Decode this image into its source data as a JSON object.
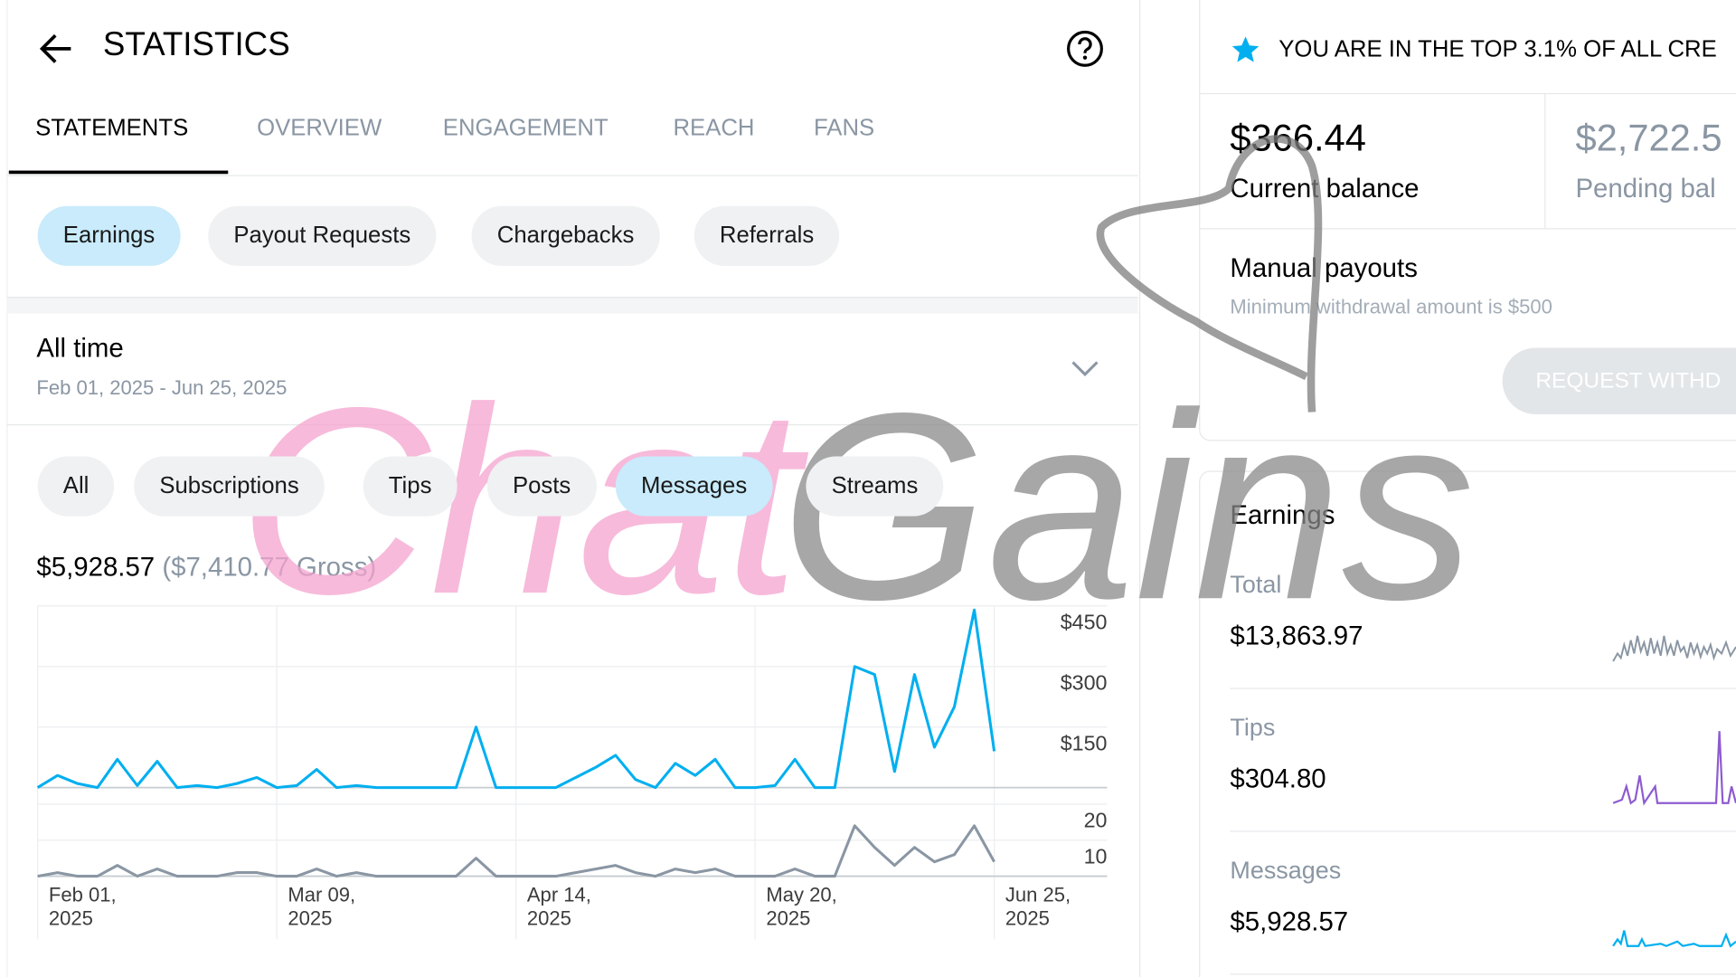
{
  "header": {
    "title": "STATISTICS"
  },
  "tabs": [
    "STATEMENTS",
    "OVERVIEW",
    "ENGAGEMENT",
    "REACH",
    "FANS"
  ],
  "subtabs": [
    "Earnings",
    "Payout Requests",
    "Chargebacks",
    "Referrals"
  ],
  "period": {
    "label": "All time",
    "range": "Feb 01, 2025 - Jun 25, 2025"
  },
  "filters": [
    "All",
    "Subscriptions",
    "Tips",
    "Posts",
    "Messages",
    "Streams"
  ],
  "summary": {
    "net": "$5,928.57",
    "gross": "($7,410.77 Gross)"
  },
  "chart_data": [
    {
      "type": "line",
      "color": "#00aff0",
      "ylim": [
        0,
        450
      ],
      "yticks": [
        {
          "value": 150,
          "label": "$150"
        },
        {
          "value": 300,
          "label": "$300"
        },
        {
          "value": 450,
          "label": "$450"
        }
      ],
      "values": [
        0,
        30,
        10,
        0,
        70,
        5,
        65,
        0,
        5,
        0,
        10,
        25,
        0,
        5,
        45,
        0,
        5,
        0,
        0,
        0,
        0,
        0,
        150,
        0,
        0,
        0,
        0,
        25,
        50,
        80,
        20,
        0,
        60,
        30,
        70,
        0,
        0,
        5,
        70,
        0,
        0,
        300,
        280,
        40,
        280,
        100,
        200,
        440,
        90
      ]
    },
    {
      "type": "line",
      "color": "#8a96a3",
      "ylim": [
        0,
        20
      ],
      "yticks": [
        10,
        20
      ],
      "categories": [
        "Feb 01, 2025",
        null,
        null,
        null,
        null,
        null,
        null,
        null,
        null,
        null,
        null,
        null,
        "Mar 09, 2025",
        null,
        null,
        null,
        null,
        null,
        null,
        null,
        null,
        null,
        null,
        null,
        "Apr 14, 2025",
        null,
        null,
        null,
        null,
        null,
        null,
        null,
        null,
        null,
        null,
        null,
        "May 20, 2025",
        null,
        null,
        null,
        null,
        null,
        null,
        null,
        null,
        null,
        null,
        null,
        "Jun 25, 2025"
      ],
      "values": [
        0,
        1,
        0,
        0,
        3,
        0,
        2,
        0,
        0,
        0,
        1,
        1,
        0,
        0,
        2,
        0,
        1,
        0,
        0,
        0,
        0,
        0,
        5,
        0,
        0,
        0,
        0,
        1,
        2,
        3,
        1,
        0,
        2,
        1,
        2,
        0,
        0,
        0,
        2,
        0,
        0,
        14,
        8,
        3,
        8,
        4,
        6,
        14,
        4
      ]
    }
  ],
  "banner": "YOU ARE IN THE TOP 3.1% OF ALL CRE",
  "balance": {
    "current": "$366.44",
    "current_label": "Current balance",
    "pending": "$2,722.5",
    "pending_label": "Pending bal"
  },
  "payouts": {
    "title": "Manual payouts",
    "note": "Minimum withdrawal amount is $500",
    "button": "REQUEST WITHD"
  },
  "earnings": {
    "title": "Earnings",
    "items": [
      {
        "label": "Total",
        "value": "$13,863.97"
      },
      {
        "label": "Tips",
        "value": "$304.80"
      },
      {
        "label": "Messages",
        "value": "$5,928.57"
      }
    ]
  },
  "watermark": {
    "first": "Chat",
    "second": "Gains"
  }
}
